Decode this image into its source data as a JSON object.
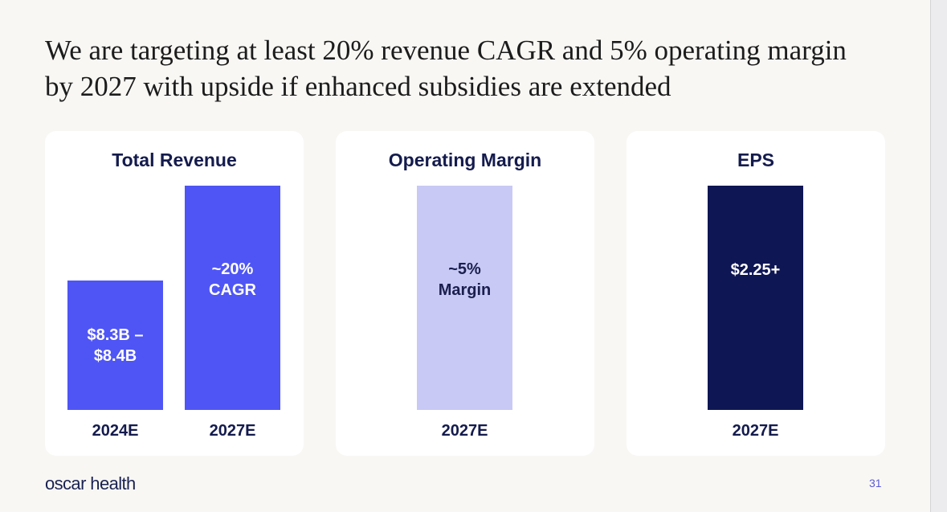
{
  "headline": "We are targeting at least 20% revenue CAGR and 5% operating margin by 2027 with upside if enhanced subsidies are extended",
  "footer": {
    "logo": "oscar health",
    "page_number": "31"
  },
  "chart_data": [
    {
      "type": "bar",
      "title": "Total Revenue",
      "categories": [
        "2024E",
        "2027E"
      ],
      "bar_labels": [
        "$8.3B –\n$8.4B",
        "~20%\nCAGR"
      ],
      "values": [
        8.35,
        14.43
      ],
      "units": "$B",
      "colors": [
        "#4f55f5",
        "#4f55f5"
      ]
    },
    {
      "type": "bar",
      "title": "Operating Margin",
      "categories": [
        "2027E"
      ],
      "bar_labels": [
        "~5%\nMargin"
      ],
      "colors": [
        "#c8c9f5"
      ]
    },
    {
      "type": "bar",
      "title": "EPS",
      "categories": [
        "2027E"
      ],
      "bar_labels": [
        "$2.25+"
      ],
      "colors": [
        "#0f1654"
      ]
    }
  ],
  "bar_text_colors": {
    "light_bar": "#1a1f4d",
    "dark_bar": "#ffffff"
  }
}
